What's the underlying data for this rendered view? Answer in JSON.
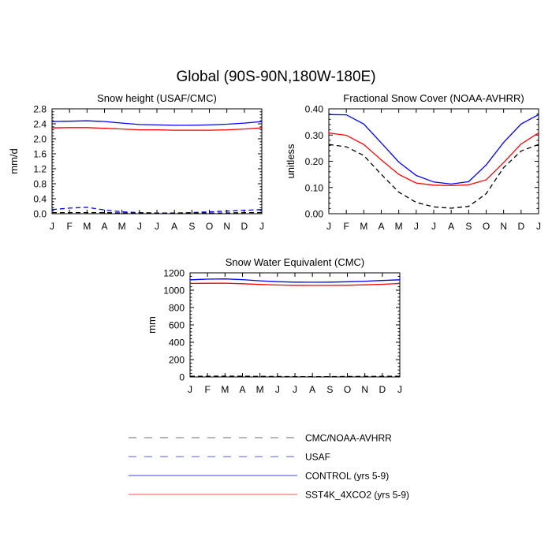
{
  "title": "Global (90S-90N,180W-180E)",
  "colors": {
    "control": "#0000ff",
    "sst4k": "#ff0000",
    "obs": "#000000",
    "usaf": "#0000ff",
    "legend_line": "#9a9a9a"
  },
  "legend": [
    {
      "label": "CMC/NOAA-AVHRR",
      "style": "dashed",
      "color": "#6e6e6e"
    },
    {
      "label": "USAF",
      "style": "dashed",
      "color": "#5a5ad8"
    },
    {
      "label": "CONTROL (yrs 5-9)",
      "style": "solid",
      "color": "#4040e0"
    },
    {
      "label": "SST4K_4XCO2 (yrs 5-9)",
      "style": "solid",
      "color": "#ff5050"
    }
  ],
  "chart_data": [
    {
      "type": "line",
      "title": "Snow height (USAF/CMC)",
      "ylabel": "mm/d",
      "ylim": [
        0,
        2.8
      ],
      "yticks": [
        "0.0",
        "0.4",
        "0.8",
        "1.2",
        "1.6",
        "2.0",
        "2.4",
        "2.8"
      ],
      "yticks_values": [
        0,
        0.4,
        0.8,
        1.2,
        1.6,
        2.0,
        2.4,
        2.8
      ],
      "categories": [
        "J",
        "F",
        "M",
        "A",
        "M",
        "J",
        "J",
        "A",
        "S",
        "O",
        "N",
        "D",
        "J"
      ],
      "series": [
        {
          "name": "CONTROL (yrs 5-9)",
          "style": "solid",
          "color": "#0000ff",
          "values": [
            2.46,
            2.47,
            2.48,
            2.46,
            2.42,
            2.38,
            2.37,
            2.36,
            2.36,
            2.37,
            2.39,
            2.42,
            2.46
          ]
        },
        {
          "name": "SST4K_4XCO2 (yrs 5-9)",
          "style": "solid",
          "color": "#ff0000",
          "values": [
            2.29,
            2.3,
            2.3,
            2.28,
            2.26,
            2.24,
            2.24,
            2.23,
            2.23,
            2.23,
            2.24,
            2.26,
            2.29
          ]
        },
        {
          "name": "USAF",
          "style": "dashed",
          "color": "#0000ff",
          "values": [
            0.11,
            0.15,
            0.17,
            0.1,
            0.05,
            0.03,
            0.02,
            0.02,
            0.03,
            0.05,
            0.07,
            0.09,
            0.11
          ]
        },
        {
          "name": "CMC/NOAA-AVHRR",
          "style": "dashed",
          "color": "#000000",
          "values": [
            0.03,
            0.03,
            0.03,
            0.03,
            0.02,
            0.02,
            0.02,
            0.02,
            0.02,
            0.02,
            0.02,
            0.03,
            0.03
          ]
        }
      ]
    },
    {
      "type": "line",
      "title": "Fractional Snow Cover (NOAA-AVHRR)",
      "ylabel": "unitless",
      "ylim": [
        0,
        0.4
      ],
      "yticks": [
        "0.00",
        "0.10",
        "0.20",
        "0.30",
        "0.40"
      ],
      "yticks_values": [
        0,
        0.1,
        0.2,
        0.3,
        0.4
      ],
      "categories": [
        "J",
        "F",
        "M",
        "A",
        "M",
        "J",
        "J",
        "A",
        "S",
        "O",
        "N",
        "D",
        "J"
      ],
      "series": [
        {
          "name": "CONTROL (yrs 5-9)",
          "style": "solid",
          "color": "#0000ff",
          "values": [
            0.378,
            0.377,
            0.342,
            0.27,
            0.197,
            0.146,
            0.121,
            0.113,
            0.122,
            0.186,
            0.272,
            0.342,
            0.378
          ]
        },
        {
          "name": "SST4K_4XCO2 (yrs 5-9)",
          "style": "solid",
          "color": "#ff0000",
          "values": [
            0.308,
            0.299,
            0.264,
            0.205,
            0.15,
            0.117,
            0.109,
            0.107,
            0.11,
            0.129,
            0.195,
            0.266,
            0.308
          ]
        },
        {
          "name": "CMC/NOAA-AVHRR",
          "style": "dashed",
          "color": "#000000",
          "values": [
            0.264,
            0.255,
            0.222,
            0.15,
            0.082,
            0.043,
            0.026,
            0.021,
            0.028,
            0.076,
            0.176,
            0.239,
            0.264
          ]
        }
      ]
    },
    {
      "type": "line",
      "title": "Snow Water Equivalent (CMC)",
      "ylabel": "mm",
      "ylim": [
        0,
        1200
      ],
      "yticks": [
        "0",
        "200",
        "400",
        "600",
        "800",
        "1000",
        "1200"
      ],
      "yticks_values": [
        0,
        200,
        400,
        600,
        800,
        1000,
        1200
      ],
      "categories": [
        "J",
        "F",
        "M",
        "A",
        "M",
        "J",
        "J",
        "A",
        "S",
        "O",
        "N",
        "D",
        "J"
      ],
      "series": [
        {
          "name": "CONTROL (yrs 5-9)",
          "style": "solid",
          "color": "#0000ff",
          "values": [
            1120,
            1127,
            1130,
            1122,
            1108,
            1098,
            1093,
            1092,
            1093,
            1097,
            1104,
            1112,
            1120
          ]
        },
        {
          "name": "SST4K_4XCO2 (yrs 5-9)",
          "style": "solid",
          "color": "#ff0000",
          "values": [
            1077,
            1080,
            1081,
            1075,
            1066,
            1060,
            1056,
            1055,
            1055,
            1057,
            1062,
            1068,
            1077
          ]
        },
        {
          "name": "CMC/NOAA-AVHRR",
          "style": "dashed",
          "color": "#000000",
          "values": [
            8,
            8,
            9,
            8,
            6,
            5,
            4,
            4,
            4,
            5,
            6,
            7,
            8
          ]
        }
      ]
    }
  ]
}
